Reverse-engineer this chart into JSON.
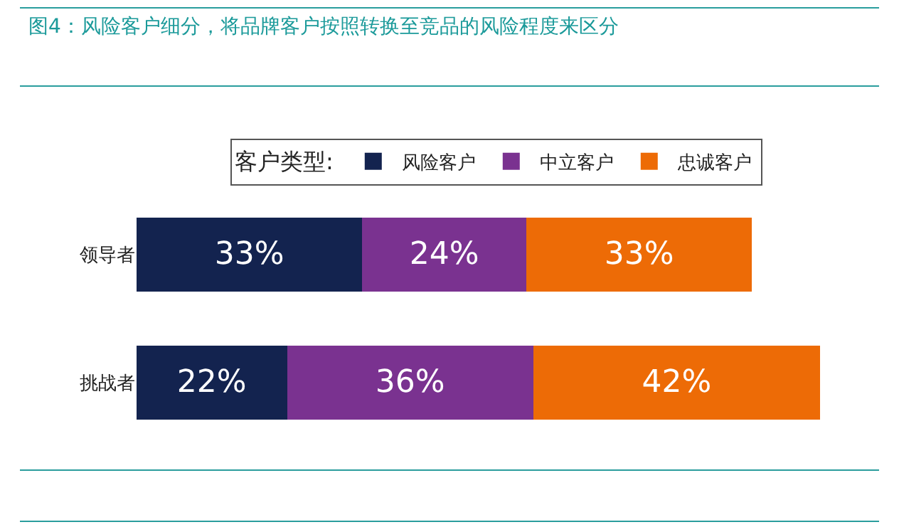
{
  "chart_data": {
    "type": "bar",
    "orientation": "horizontal",
    "stacked": true,
    "title": "图4：风险客户细分，将品牌客户按照转换至竞品的风险程度来区分",
    "categories": [
      "领导者",
      "挑战者"
    ],
    "series": [
      {
        "name": "风险客户",
        "color": "#13234f",
        "values": [
          33,
          22
        ],
        "value_labels": [
          "33%",
          "22%"
        ]
      },
      {
        "name": "中立客户",
        "color": "#7a3290",
        "values": [
          24,
          36
        ],
        "value_labels": [
          "24%",
          "36%"
        ]
      },
      {
        "name": "忠诚客户",
        "color": "#ed6b06",
        "values": [
          33,
          42
        ],
        "value_labels": [
          "33%",
          "42%"
        ]
      }
    ],
    "legend_title": "客户类型:",
    "legend": "top",
    "tick_labels": "y"
  }
}
